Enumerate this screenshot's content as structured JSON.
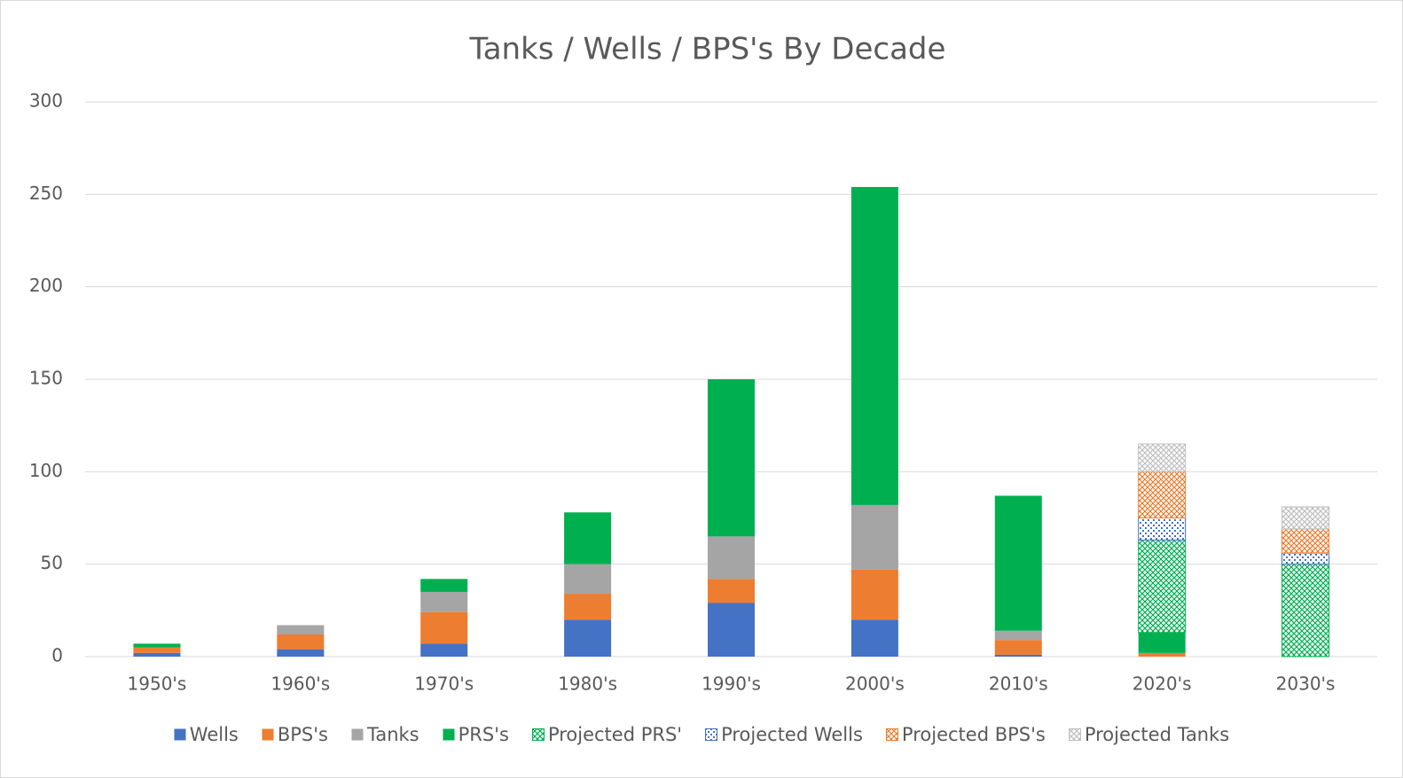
{
  "chart_data": {
    "type": "stacked_bar",
    "title": "Tanks / Wells / BPS's By Decade",
    "categories": [
      "1950's",
      "1960's",
      "1970's",
      "1980's",
      "1990's",
      "2000's",
      "2010's",
      "2020's",
      "2030's"
    ],
    "series": [
      {
        "name": "Wells",
        "color": "#4472c4",
        "pattern": "solid",
        "values": [
          2,
          4,
          7,
          20,
          29,
          20,
          1,
          0,
          0
        ]
      },
      {
        "name": "BPS's",
        "color": "#ed7d31",
        "pattern": "solid",
        "values": [
          3,
          8,
          17,
          14,
          13,
          27,
          8,
          2,
          0
        ]
      },
      {
        "name": "Tanks",
        "color": "#a5a5a5",
        "pattern": "solid",
        "values": [
          0,
          5,
          11,
          16,
          23,
          35,
          5,
          0,
          0
        ]
      },
      {
        "name": "PRS's",
        "color": "#00b050",
        "pattern": "solid",
        "values": [
          2,
          0,
          7,
          28,
          85,
          172,
          73,
          11,
          0
        ]
      },
      {
        "name": "Projected PRS'",
        "color": "#00b050",
        "pattern": "crosshatch",
        "values": [
          0,
          0,
          0,
          0,
          0,
          0,
          0,
          50,
          50
        ]
      },
      {
        "name": "Projected Wells",
        "color": "#4472c4",
        "pattern": "dots",
        "values": [
          0,
          0,
          0,
          0,
          0,
          0,
          0,
          12,
          6
        ]
      },
      {
        "name": "Projected BPS's",
        "color": "#ed7d31",
        "pattern": "crosshatch",
        "values": [
          0,
          0,
          0,
          0,
          0,
          0,
          0,
          25,
          13
        ]
      },
      {
        "name": "Projected Tanks",
        "color": "#bfbfbf",
        "pattern": "crosshatch",
        "values": [
          0,
          0,
          0,
          0,
          0,
          0,
          0,
          15,
          12
        ]
      }
    ],
    "ylim": [
      0,
      300
    ],
    "yticks": [
      0,
      50,
      100,
      150,
      200,
      250,
      300
    ],
    "grid": true
  }
}
